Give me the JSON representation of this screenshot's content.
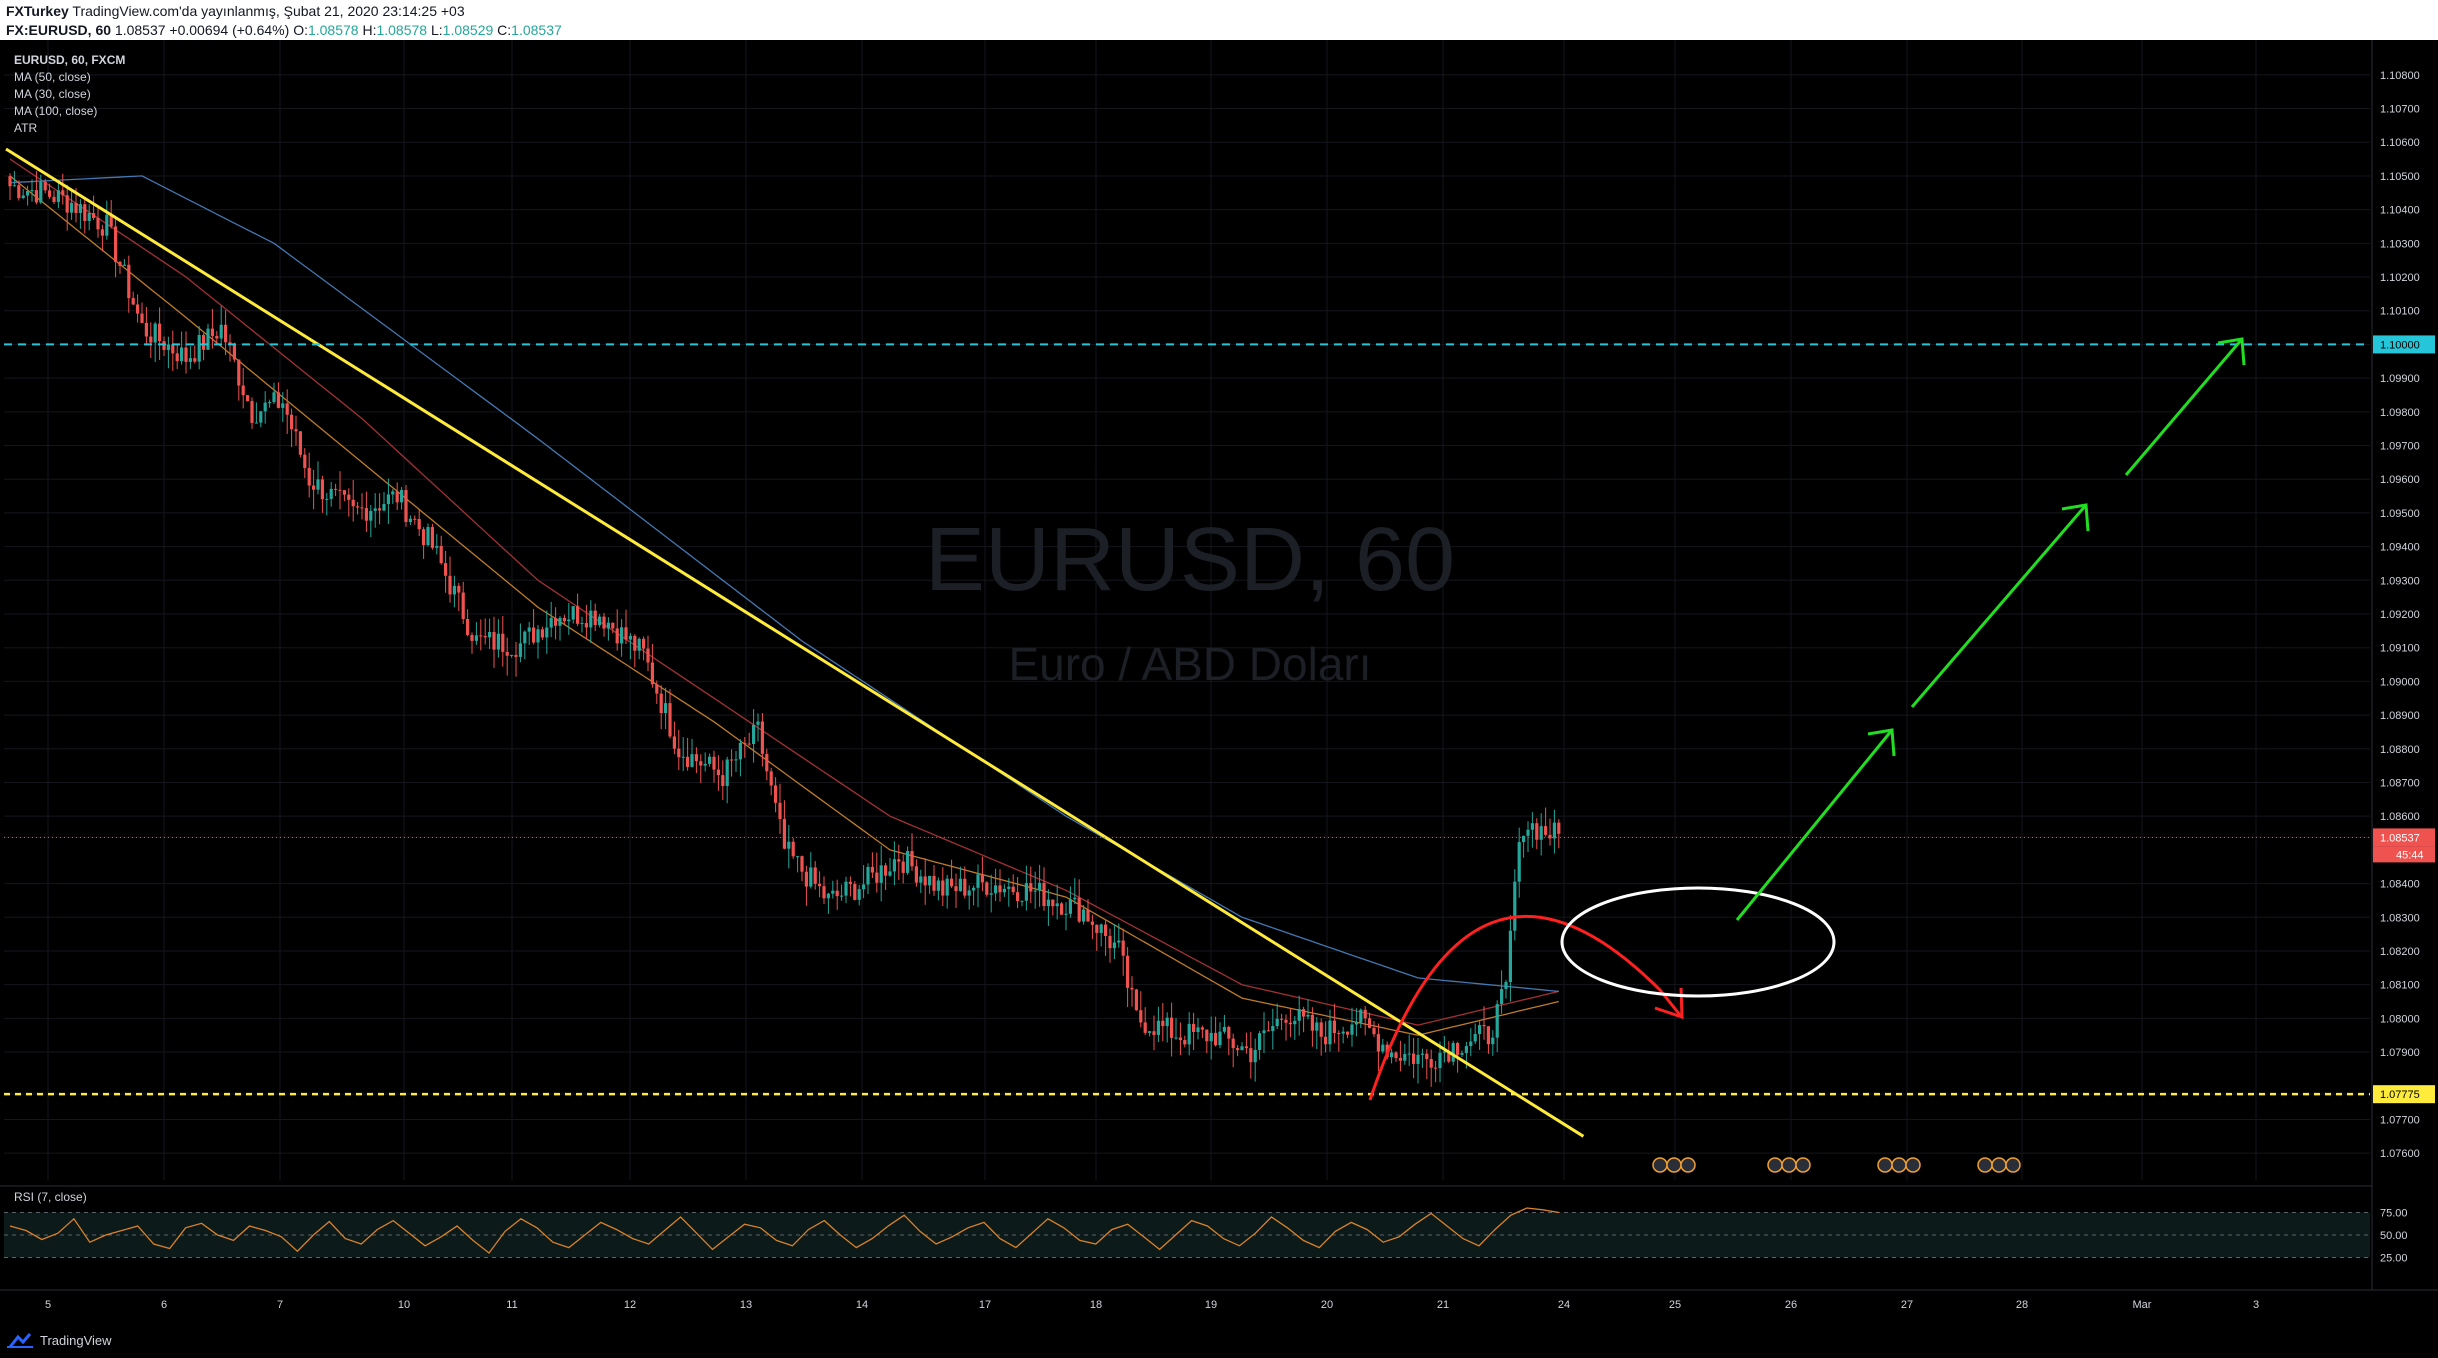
{
  "header": {
    "publisher": "FXTurkey",
    "published_text": "TradingView.com'da yayınlanmış, Şubat 21, 2020 23:14:25 +03",
    "symbol": "FX:EURUSD, 60",
    "price": "1.08537",
    "change": "+0.00694 (+0.64%)",
    "o_label": "O:",
    "o": "1.08578",
    "h_label": "H:",
    "h": "1.08578",
    "l_label": "L:",
    "l": "1.08529",
    "c_label": "C:",
    "c": "1.08537"
  },
  "legend": {
    "title": "EURUSD, 60, FXCM",
    "ma50": "MA (50, close)",
    "ma30": "MA (30, close)",
    "ma100": "MA (100, close)",
    "atr": "ATR"
  },
  "watermark": {
    "symbol": "EURUSD, 60",
    "name": "Euro / ABD Doları"
  },
  "rsi": {
    "label": "RSI (7, close)",
    "ticks": [
      "75.00",
      "50.00",
      "25.00"
    ]
  },
  "footer": {
    "brand": "TradingView"
  },
  "colors": {
    "background": "#000000",
    "candle_up": "#26a69a",
    "candle_down": "#ef5350",
    "ma50": "#b2363b",
    "ma30": "#d38a2c",
    "ma100": "#4a84c4",
    "trendline": "#ffeb3b",
    "resistance": "#26c6da",
    "support": "#ffeb3b",
    "projection_up": "#22dd22",
    "projection_down": "#ff2020",
    "rsi_line": "#d9822b",
    "price_badge": "#ef5350"
  },
  "chart_data": {
    "type": "candlestick",
    "symbol": "EURUSD",
    "timeframe": "60",
    "x_ticks": [
      "5",
      "6",
      "7",
      "10",
      "11",
      "12",
      "13",
      "14",
      "17",
      "18",
      "19",
      "20",
      "21",
      "24",
      "25",
      "26",
      "27",
      "28",
      "Mar",
      "3"
    ],
    "y_ticks": [
      "1.10800",
      "1.10700",
      "1.10600",
      "1.10500",
      "1.10400",
      "1.10300",
      "1.10200",
      "1.10100",
      "1.10000",
      "1.09900",
      "1.09800",
      "1.09700",
      "1.09600",
      "1.09500",
      "1.09400",
      "1.09300",
      "1.09200",
      "1.09100",
      "1.09000",
      "1.08900",
      "1.08800",
      "1.08700",
      "1.08600",
      "1.08537",
      "1.08400",
      "1.08300",
      "1.08200",
      "1.08100",
      "1.08000",
      "1.07900",
      "1.07775",
      "1.07700",
      "1.07600"
    ],
    "ylim": [
      1.0755,
      1.1085
    ],
    "last_price": 1.08537,
    "countdown": "45:44",
    "resistance_level": 1.1,
    "support_level": 1.07775,
    "price_path": [
      [
        0,
        1.1047
      ],
      [
        8,
        1.1045
      ],
      [
        14,
        1.1042
      ],
      [
        22,
        1.1035
      ],
      [
        30,
        1.1005
      ],
      [
        40,
        1.0996
      ],
      [
        48,
        1.1005
      ],
      [
        55,
        1.098
      ],
      [
        62,
        1.0983
      ],
      [
        68,
        1.096
      ],
      [
        78,
        1.095
      ],
      [
        88,
        1.0955
      ],
      [
        96,
        1.094
      ],
      [
        106,
        1.0912
      ],
      [
        116,
        1.0911
      ],
      [
        124,
        1.092
      ],
      [
        134,
        1.092
      ],
      [
        144,
        1.0908
      ],
      [
        152,
        1.088
      ],
      [
        162,
        1.0872
      ],
      [
        170,
        1.0885
      ],
      [
        176,
        1.085
      ],
      [
        186,
        1.0835
      ],
      [
        194,
        1.084
      ],
      [
        202,
        1.0848
      ],
      [
        212,
        1.0838
      ],
      [
        222,
        1.084
      ],
      [
        232,
        1.0838
      ],
      [
        244,
        1.0832
      ],
      [
        252,
        1.082
      ],
      [
        256,
        1.08
      ],
      [
        266,
        1.0795
      ],
      [
        274,
        1.0795
      ],
      [
        282,
        1.079
      ],
      [
        290,
        1.0802
      ],
      [
        298,
        1.0795
      ],
      [
        306,
        1.08
      ],
      [
        314,
        1.079
      ],
      [
        322,
        1.0788
      ],
      [
        330,
        1.0793
      ],
      [
        336,
        1.0795
      ],
      [
        340,
        1.0808
      ],
      [
        342,
        1.084
      ],
      [
        344,
        1.0858
      ],
      [
        348,
        1.0856
      ],
      [
        352,
        1.0854
      ]
    ],
    "series": [
      {
        "name": "MA (50, close)",
        "points": [
          [
            0,
            1.1055
          ],
          [
            40,
            1.102
          ],
          [
            80,
            1.0978
          ],
          [
            120,
            1.093
          ],
          [
            160,
            1.0895
          ],
          [
            200,
            1.086
          ],
          [
            240,
            1.0838
          ],
          [
            280,
            1.081
          ],
          [
            320,
            1.0798
          ],
          [
            352,
            1.0808
          ]
        ]
      },
      {
        "name": "MA (30, close)",
        "points": [
          [
            0,
            1.105
          ],
          [
            40,
            1.1008
          ],
          [
            80,
            1.0965
          ],
          [
            120,
            1.0922
          ],
          [
            160,
            1.0888
          ],
          [
            200,
            1.085
          ],
          [
            240,
            1.0836
          ],
          [
            280,
            1.0806
          ],
          [
            320,
            1.0795
          ],
          [
            352,
            1.0805
          ]
        ]
      },
      {
        "name": "MA (100, close)",
        "points": [
          [
            0,
            1.1048
          ],
          [
            30,
            1.105
          ],
          [
            60,
            1.103
          ],
          [
            120,
            1.0972
          ],
          [
            180,
            1.0912
          ],
          [
            240,
            1.086
          ],
          [
            280,
            1.083
          ],
          [
            320,
            1.0812
          ],
          [
            352,
            1.0808
          ]
        ]
      }
    ],
    "trendline": {
      "from": [
        0,
        1.1058
      ],
      "to": [
        356,
        1.0765
      ]
    },
    "rsi_ylim": [
      0,
      100
    ],
    "rsi_levels": [
      75,
      50,
      25
    ],
    "rsi": [
      60,
      55,
      45,
      52,
      68,
      42,
      50,
      55,
      60,
      40,
      35,
      58,
      63,
      50,
      44,
      60,
      55,
      48,
      32,
      50,
      65,
      46,
      40,
      56,
      66,
      52,
      38,
      48,
      60,
      44,
      30,
      54,
      68,
      58,
      42,
      36,
      50,
      64,
      56,
      46,
      40,
      55,
      70,
      52,
      34,
      48,
      62,
      58,
      44,
      38,
      56,
      66,
      50,
      36,
      46,
      60,
      72,
      54,
      40,
      48,
      58,
      64,
      46,
      36,
      52,
      68,
      58,
      44,
      40,
      56,
      62,
      48,
      34,
      50,
      66,
      60,
      46,
      38,
      52,
      70,
      58,
      44,
      36,
      54,
      64,
      56,
      42,
      48,
      62,
      74,
      60,
      46,
      38,
      56,
      72,
      80,
      78,
      75
    ]
  }
}
